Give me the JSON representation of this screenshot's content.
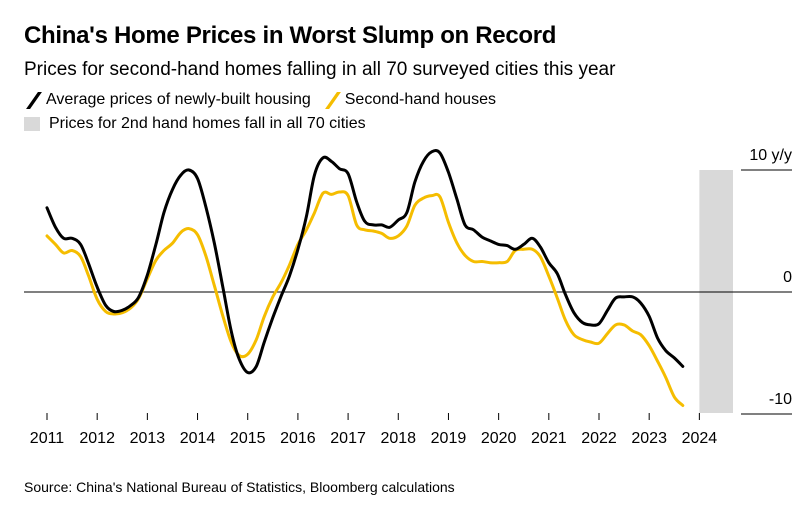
{
  "title": "China's Home Prices in Worst Slump on Record",
  "subtitle": "Prices for second-hand homes falling in all 70 surveyed cities this year",
  "legend": [
    {
      "label": "Average prices of newly-built housing",
      "color": "#000000",
      "marker": "line"
    },
    {
      "label": "Second-hand houses",
      "color": "#f5bd00",
      "marker": "line"
    },
    {
      "label": "Prices for 2nd hand homes fall in all 70 cities",
      "color": "#d9d9d9",
      "marker": "box"
    }
  ],
  "source": "Source: China's National Bureau of Statistics, Bloomberg calculations",
  "chart_data": {
    "type": "line",
    "title": "China's Home Prices in Worst Slump on Record",
    "subtitle": "Prices for second-hand homes falling in all 70 surveyed cities this year",
    "ylabel": "",
    "y_unit": "y/y",
    "ylim": [
      -10.5,
      10
    ],
    "xlim": [
      2011.0,
      2024.75
    ],
    "y_ticks": [
      {
        "value": 10,
        "label": "10 y/y"
      },
      {
        "value": 0,
        "label": "0"
      },
      {
        "value": -10,
        "label": "-10"
      }
    ],
    "x_ticks": [
      2011,
      2012,
      2013,
      2014,
      2015,
      2016,
      2017,
      2018,
      2019,
      2020,
      2021,
      2022,
      2023,
      2024
    ],
    "x_tick_labels": [
      "2011",
      "2012",
      "2013",
      "2014",
      "2015",
      "2016",
      "2017",
      "2018",
      "2019",
      "2020",
      "2021",
      "2022",
      "2023",
      "2024"
    ],
    "grid": false,
    "zero_line": true,
    "legend_position": "top-left",
    "shaded_region": {
      "label": "Prices for 2nd hand homes fall in all 70 cities",
      "x_start": 2024.0,
      "x_end": 2024.67,
      "color": "#d9d9d9"
    },
    "series": [
      {
        "name": "Average prices of newly-built housing",
        "color": "#000000",
        "points": [
          [
            2011.0,
            6.9
          ],
          [
            2011.17,
            5.3
          ],
          [
            2011.33,
            4.4
          ],
          [
            2011.5,
            4.4
          ],
          [
            2011.67,
            3.9
          ],
          [
            2011.83,
            2.3
          ],
          [
            2012.0,
            0.4
          ],
          [
            2012.17,
            -1.1
          ],
          [
            2012.33,
            -1.6
          ],
          [
            2012.5,
            -1.5
          ],
          [
            2012.67,
            -1.1
          ],
          [
            2012.83,
            -0.4
          ],
          [
            2013.0,
            1.4
          ],
          [
            2013.17,
            3.9
          ],
          [
            2013.33,
            6.5
          ],
          [
            2013.5,
            8.4
          ],
          [
            2013.67,
            9.6
          ],
          [
            2013.83,
            10.0
          ],
          [
            2014.0,
            9.3
          ],
          [
            2014.17,
            6.9
          ],
          [
            2014.33,
            4.1
          ],
          [
            2014.5,
            0.5
          ],
          [
            2014.67,
            -3.2
          ],
          [
            2014.83,
            -5.5
          ],
          [
            2015.0,
            -6.6
          ],
          [
            2015.17,
            -6.1
          ],
          [
            2015.33,
            -4.1
          ],
          [
            2015.5,
            -2.1
          ],
          [
            2015.67,
            -0.3
          ],
          [
            2015.83,
            1.3
          ],
          [
            2016.0,
            3.5
          ],
          [
            2016.17,
            6.2
          ],
          [
            2016.33,
            9.6
          ],
          [
            2016.5,
            11.0
          ],
          [
            2016.67,
            10.7
          ],
          [
            2016.83,
            10.1
          ],
          [
            2017.0,
            9.7
          ],
          [
            2017.17,
            7.4
          ],
          [
            2017.33,
            5.8
          ],
          [
            2017.5,
            5.5
          ],
          [
            2017.67,
            5.5
          ],
          [
            2017.83,
            5.3
          ],
          [
            2018.0,
            5.9
          ],
          [
            2018.17,
            6.5
          ],
          [
            2018.33,
            9.0
          ],
          [
            2018.5,
            10.7
          ],
          [
            2018.67,
            11.5
          ],
          [
            2018.83,
            11.4
          ],
          [
            2019.0,
            9.8
          ],
          [
            2019.17,
            7.6
          ],
          [
            2019.33,
            5.5
          ],
          [
            2019.5,
            5.1
          ],
          [
            2019.67,
            4.5
          ],
          [
            2019.83,
            4.2
          ],
          [
            2020.0,
            3.9
          ],
          [
            2020.17,
            3.8
          ],
          [
            2020.33,
            3.5
          ],
          [
            2020.5,
            3.9
          ],
          [
            2020.67,
            4.4
          ],
          [
            2020.83,
            3.7
          ],
          [
            2021.0,
            2.4
          ],
          [
            2021.17,
            1.5
          ],
          [
            2021.33,
            -0.2
          ],
          [
            2021.5,
            -1.7
          ],
          [
            2021.67,
            -2.5
          ],
          [
            2021.83,
            -2.7
          ],
          [
            2022.0,
            -2.6
          ],
          [
            2022.17,
            -1.5
          ],
          [
            2022.33,
            -0.5
          ],
          [
            2022.5,
            -0.4
          ],
          [
            2022.67,
            -0.4
          ],
          [
            2022.83,
            -0.9
          ],
          [
            2023.0,
            -2.0
          ],
          [
            2023.17,
            -3.8
          ],
          [
            2023.33,
            -4.8
          ],
          [
            2023.5,
            -5.4
          ],
          [
            2023.67,
            -6.1
          ]
        ]
      },
      {
        "name": "Second-hand houses",
        "color": "#f5bd00",
        "points": [
          [
            2011.0,
            4.6
          ],
          [
            2011.17,
            3.9
          ],
          [
            2011.33,
            3.2
          ],
          [
            2011.5,
            3.4
          ],
          [
            2011.67,
            2.9
          ],
          [
            2011.83,
            1.3
          ],
          [
            2012.0,
            -0.6
          ],
          [
            2012.17,
            -1.6
          ],
          [
            2012.33,
            -1.8
          ],
          [
            2012.5,
            -1.7
          ],
          [
            2012.67,
            -1.3
          ],
          [
            2012.83,
            -0.5
          ],
          [
            2013.0,
            1.1
          ],
          [
            2013.17,
            2.6
          ],
          [
            2013.33,
            3.4
          ],
          [
            2013.5,
            4.0
          ],
          [
            2013.67,
            4.9
          ],
          [
            2013.83,
            5.2
          ],
          [
            2014.0,
            4.7
          ],
          [
            2014.17,
            2.9
          ],
          [
            2014.33,
            0.6
          ],
          [
            2014.5,
            -1.9
          ],
          [
            2014.67,
            -4.1
          ],
          [
            2014.83,
            -5.2
          ],
          [
            2015.0,
            -5.1
          ],
          [
            2015.17,
            -3.9
          ],
          [
            2015.33,
            -2.0
          ],
          [
            2015.5,
            -0.4
          ],
          [
            2015.67,
            0.8
          ],
          [
            2015.83,
            2.2
          ],
          [
            2016.0,
            3.9
          ],
          [
            2016.17,
            5.1
          ],
          [
            2016.33,
            6.5
          ],
          [
            2016.5,
            8.1
          ],
          [
            2016.67,
            8.0
          ],
          [
            2016.83,
            8.2
          ],
          [
            2017.0,
            7.9
          ],
          [
            2017.17,
            5.5
          ],
          [
            2017.33,
            5.1
          ],
          [
            2017.5,
            5.0
          ],
          [
            2017.67,
            4.8
          ],
          [
            2017.83,
            4.4
          ],
          [
            2018.0,
            4.6
          ],
          [
            2018.17,
            5.4
          ],
          [
            2018.33,
            7.1
          ],
          [
            2018.5,
            7.7
          ],
          [
            2018.67,
            7.9
          ],
          [
            2018.83,
            7.8
          ],
          [
            2019.0,
            5.7
          ],
          [
            2019.17,
            4.0
          ],
          [
            2019.33,
            3.0
          ],
          [
            2019.5,
            2.5
          ],
          [
            2019.67,
            2.5
          ],
          [
            2019.83,
            2.4
          ],
          [
            2020.0,
            2.4
          ],
          [
            2020.17,
            2.5
          ],
          [
            2020.33,
            3.4
          ],
          [
            2020.5,
            3.5
          ],
          [
            2020.67,
            3.5
          ],
          [
            2020.83,
            2.9
          ],
          [
            2021.0,
            1.3
          ],
          [
            2021.17,
            -0.5
          ],
          [
            2021.33,
            -2.3
          ],
          [
            2021.5,
            -3.5
          ],
          [
            2021.67,
            -3.9
          ],
          [
            2021.83,
            -4.1
          ],
          [
            2022.0,
            -4.2
          ],
          [
            2022.17,
            -3.4
          ],
          [
            2022.33,
            -2.7
          ],
          [
            2022.5,
            -2.7
          ],
          [
            2022.67,
            -3.2
          ],
          [
            2022.83,
            -3.5
          ],
          [
            2023.0,
            -4.4
          ],
          [
            2023.17,
            -5.7
          ],
          [
            2023.33,
            -7.0
          ],
          [
            2023.5,
            -8.6
          ],
          [
            2023.67,
            -9.3
          ]
        ]
      }
    ]
  }
}
